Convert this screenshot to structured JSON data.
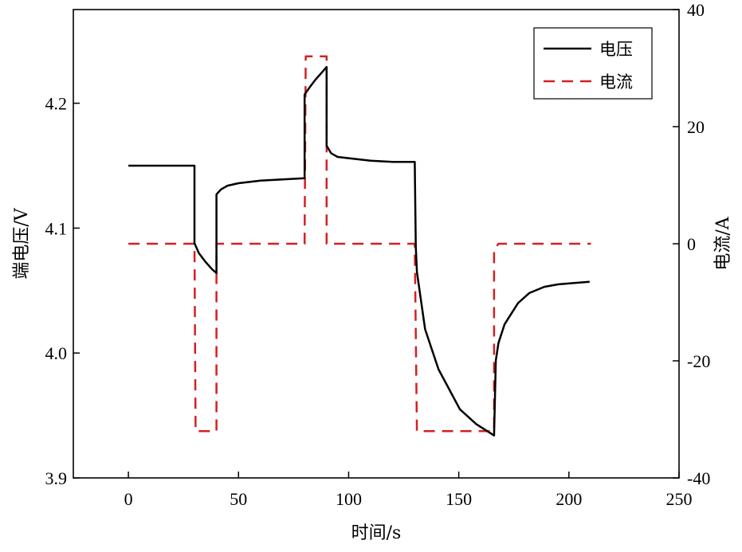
{
  "chart_data": {
    "type": "line",
    "title": "",
    "xlabel": "时间/s",
    "ylabel": "端电压/V",
    "y2label": "电流/A",
    "xlim": [
      -25,
      250
    ],
    "ylim": [
      3.9,
      4.275
    ],
    "y2lim": [
      -40,
      40
    ],
    "xticks": [
      "0",
      "50",
      "100",
      "150",
      "200",
      "250"
    ],
    "yticks": [
      "3.9",
      "4.0",
      "4.1",
      "4.2"
    ],
    "y2ticks": [
      "-40",
      "-20",
      "0",
      "20",
      "40"
    ],
    "grid": false,
    "legend_position": "top-right",
    "series": [
      {
        "name": "电压",
        "axis": "left",
        "color": "#000000",
        "style": "solid",
        "x": [
          0,
          30,
          30,
          32,
          35,
          38,
          40,
          40,
          42,
          45,
          50,
          60,
          70,
          80,
          80,
          82,
          85,
          88,
          90,
          90,
          92,
          95,
          100,
          110,
          120,
          130,
          130.5,
          131,
          134.7,
          140.8,
          150.5,
          158,
          166,
          166.8,
          168,
          170.8,
          176.9,
          182,
          188.8,
          195,
          202,
          209.4
        ],
        "y": [
          4.15,
          4.15,
          4.088,
          4.08,
          4.073,
          4.067,
          4.064,
          4.127,
          4.131,
          4.134,
          4.136,
          4.138,
          4.139,
          4.14,
          4.207,
          4.212,
          4.219,
          4.225,
          4.229,
          4.166,
          4.16,
          4.157,
          4.156,
          4.154,
          4.153,
          4.153,
          4.085,
          4.065,
          4.019,
          3.987,
          3.955,
          3.943,
          3.934,
          3.994,
          4.008,
          4.023,
          4.04,
          4.048,
          4.053,
          4.055,
          4.056,
          4.057
        ]
      },
      {
        "name": "电流",
        "axis": "right",
        "color": "#d42020",
        "style": "dashed",
        "x": [
          0,
          30,
          30.5,
          40,
          40,
          80,
          80,
          80.5,
          90,
          90,
          130,
          131,
          166,
          166,
          168,
          210
        ],
        "y": [
          0,
          0,
          -32,
          -32,
          0,
          0,
          1,
          32,
          32,
          0,
          0,
          -32,
          -32,
          -1,
          0,
          0
        ]
      }
    ]
  }
}
